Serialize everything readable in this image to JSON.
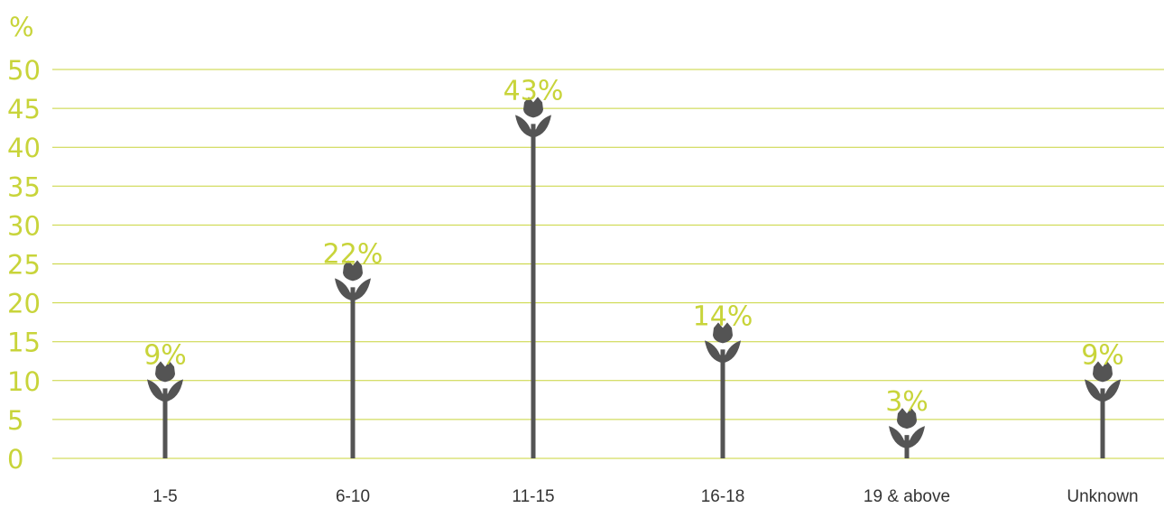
{
  "chart_data": {
    "type": "bar",
    "ylabel": "%",
    "ylim": [
      0,
      50
    ],
    "yticks": [
      "0",
      "5",
      "10",
      "15",
      "20",
      "25",
      "30",
      "35",
      "40",
      "45",
      "50"
    ],
    "categories": [
      "1-5",
      "6-10",
      "11-15",
      "16-18",
      "19 & above",
      "Unknown"
    ],
    "values": [
      9,
      22,
      43,
      14,
      3,
      9
    ],
    "data_labels": [
      "9%",
      "22%",
      "43%",
      "14%",
      "3%",
      "9%"
    ],
    "grid": true,
    "marker_icon": "tulip-icon",
    "colors": {
      "accent": "#c8d43a",
      "gridline": "#c8d43a",
      "stem": "#545454",
      "tick_text": "#333333"
    }
  }
}
